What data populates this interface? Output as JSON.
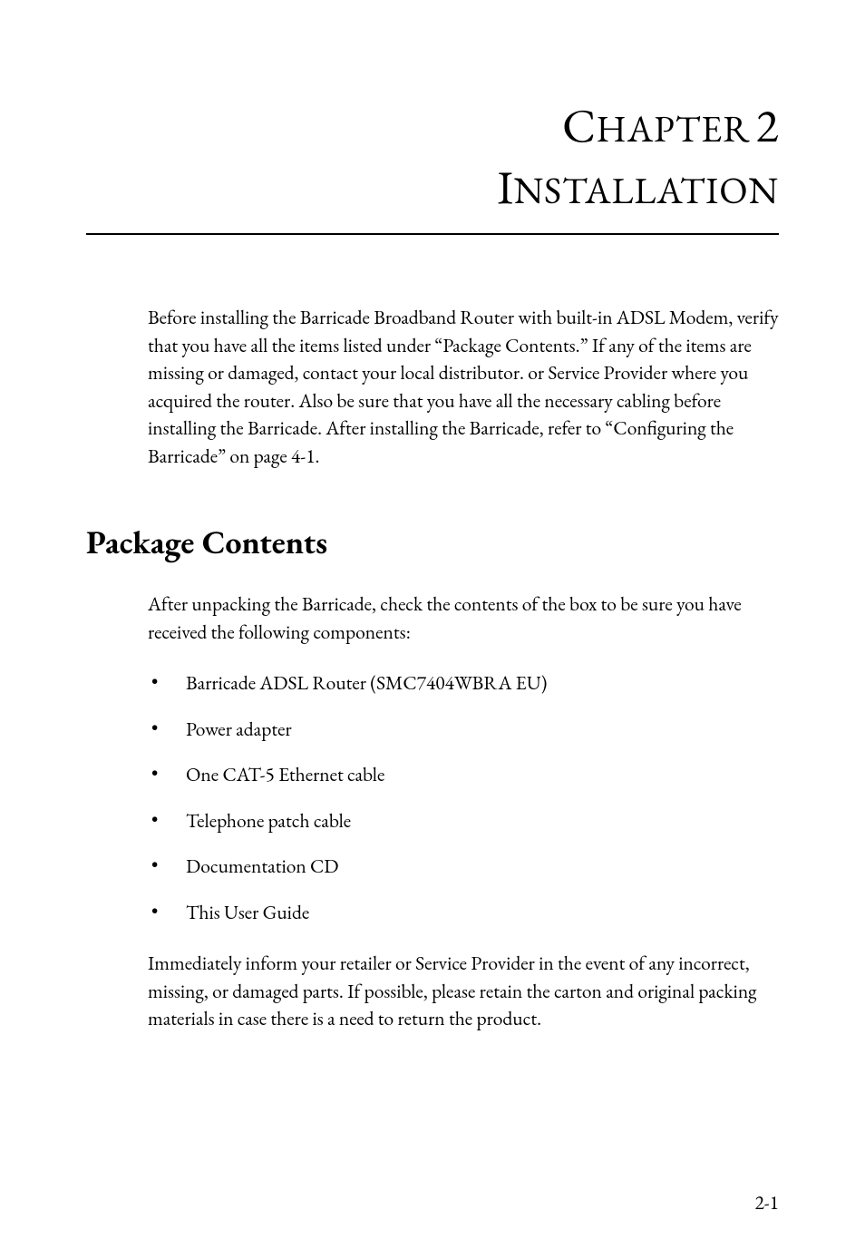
{
  "chapter": {
    "label_lead": "C",
    "label_rest": "HAPTER",
    "number": "2",
    "title_lead": "I",
    "title_rest": "NSTALLATION"
  },
  "intro": "Before installing the Barricade Broadband Router with built-in ADSL Modem, verify that you have all the items listed under “Package Contents.” If any of the items are missing or damaged, contact your local distributor. or Service Provider where you acquired the router. Also be sure that you have all the necessary cabling before installing the Barricade. After installing the Barricade, refer to “Configuring the Barricade” on page 4-1.",
  "section": {
    "heading": "Package Contents",
    "intro": "After unpacking the Barricade, check the contents of the box to be sure you have received the following components:",
    "items": [
      "Barricade ADSL Router (SMC7404WBRA EU)",
      "Power adapter",
      "One CAT-5 Ethernet cable",
      "Telephone patch cable",
      "Documentation CD",
      "This User Guide"
    ],
    "outro": "Immediately inform your retailer or Service Provider in the event of any incorrect, missing, or damaged parts. If possible, please retain the carton and original packing materials in case there is a need to return the product."
  },
  "page_number": "2-1",
  "style": {
    "page_bg": "#ffffff",
    "text_color": "#000000",
    "rule_color": "#000000",
    "body_fontsize_pt": 16,
    "chapter_fontsize_pt": 39,
    "section_head_fontsize_pt": 27,
    "font_family": "Garamond/serif"
  }
}
